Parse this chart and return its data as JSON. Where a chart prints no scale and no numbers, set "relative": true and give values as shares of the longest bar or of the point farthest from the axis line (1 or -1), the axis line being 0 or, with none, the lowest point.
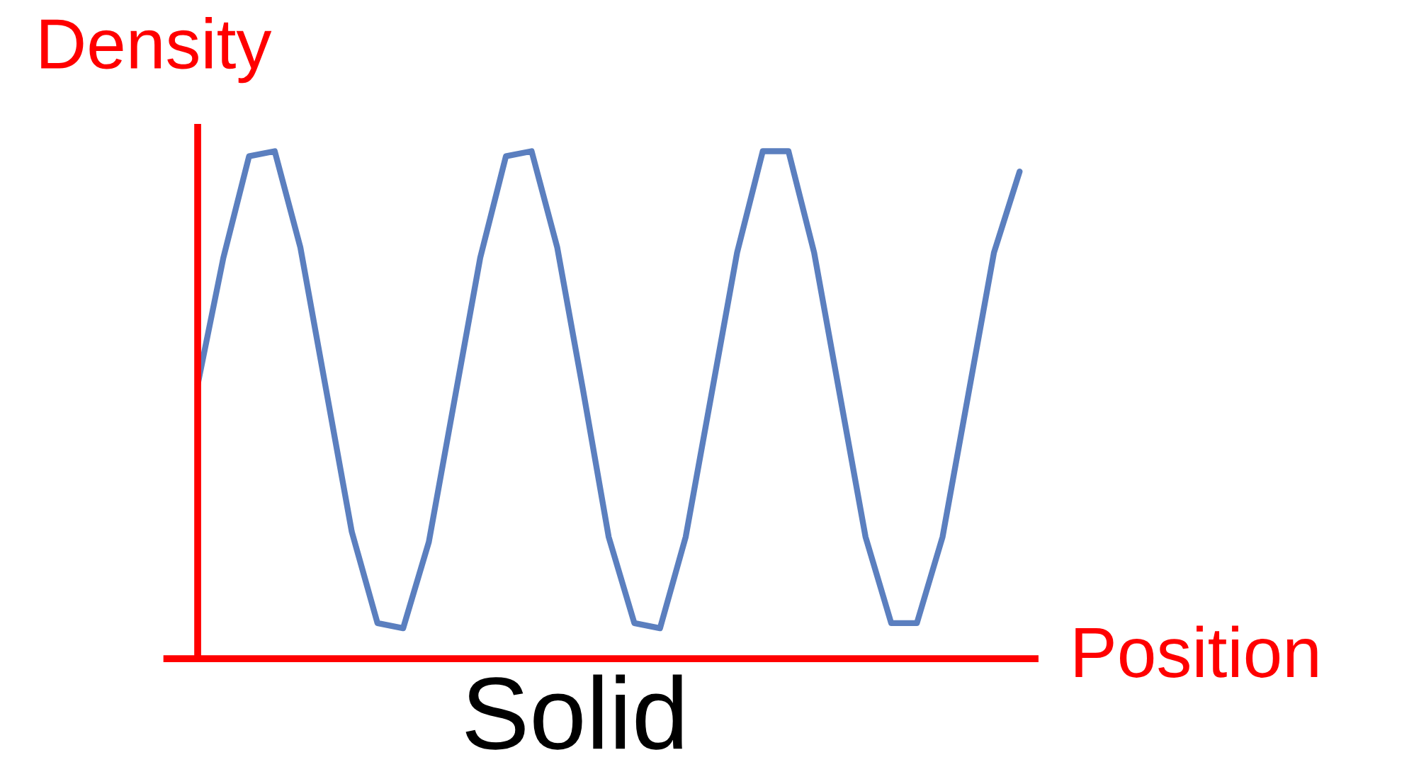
{
  "chart_data": {
    "type": "line",
    "relative": true,
    "xlabel": "Position",
    "ylabel": "Density",
    "annotations": [
      "Solid"
    ],
    "categories": [
      null,
      null,
      null,
      null,
      null,
      null,
      null,
      null,
      null,
      null,
      null,
      null,
      null,
      null,
      null,
      null,
      null,
      null,
      null,
      null,
      null,
      null,
      null,
      null,
      null,
      null,
      null,
      null,
      null,
      null,
      null,
      null,
      null
    ],
    "series": [
      {
        "color": "#5b7fbf",
        "values": [
          0.54,
          0.79,
          0.99,
          1,
          0.81,
          0.53,
          0.25,
          0.07,
          0.06,
          0.23,
          0.51,
          0.79,
          0.99,
          1,
          0.81,
          0.53,
          0.24,
          0.07,
          0.06,
          0.24,
          0.52,
          0.8,
          1,
          1,
          0.8,
          0.52,
          0.24,
          0.07,
          0.07,
          0.24,
          0.52,
          0.8,
          0.96
        ]
      }
    ]
  }
}
